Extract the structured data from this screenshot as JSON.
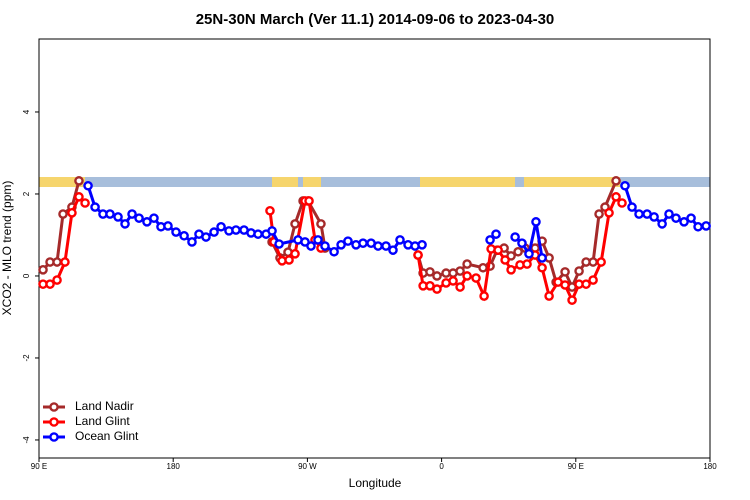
{
  "chart_data": {
    "type": "line",
    "title": "25N-30N March (Ver 11.1)   2014-09-06 to 2023-04-30",
    "x_label": "Longitude",
    "y_label": "XCO2 - MLO trend (ppm)",
    "xlim": [
      90,
      540
    ],
    "xticks": [
      {
        "value": 90,
        "label": "90 E"
      },
      180,
      {
        "value": 270,
        "label": "90 W"
      },
      {
        "value": 360,
        "label": "0"
      },
      {
        "value": 450,
        "label": "90 E"
      },
      {
        "value": 540,
        "label": "180"
      }
    ],
    "ylim": [
      -4.44,
      5.78
    ],
    "yticks": [
      -4,
      -2,
      0,
      2,
      4
    ],
    "legend": "lower left",
    "series": [
      {
        "name": "Land Nadir",
        "color": "#a52a2a",
        "x": [
          92.7,
          97.4,
          102.1,
          106.1,
          112.1,
          116.8,
          200,
          246.3,
          251.6,
          257.0,
          261.7,
          267.1,
          270.4,
          279.1,
          281.8,
          320,
          344.2,
          347.6,
          352.2,
          356.9,
          363.0,
          367.7,
          372.4,
          377.1,
          387.8,
          392.5,
          397.2,
          401.9,
          406.6,
          411.3,
          416.0,
          422.7,
          427.4,
          432.1,
          436.8,
          442.8,
          447.5,
          452.2,
          456.9,
          461.6,
          465.6,
          469.6,
          477.0
        ],
        "values": [
          0.15,
          0.34,
          0.34,
          1.51,
          1.68,
          2.32,
          null,
          0.83,
          0.44,
          0.58,
          1.27,
          1.83,
          1.83,
          1.27,
          0.68,
          null,
          0.51,
          0.07,
          0.1,
          0,
          0.07,
          0.07,
          0.12,
          0.29,
          0.2,
          0.24,
          0.63,
          0.68,
          0.49,
          0.59,
          0.68,
          0.68,
          0.85,
          0.44,
          -0.15,
          0.1,
          -0.27,
          0.12,
          0.34,
          0.34,
          1.51,
          1.68,
          2.32
        ]
      },
      {
        "name": "Land Glint",
        "color": "#ff0000",
        "x": [
          92.7,
          97.4,
          102.1,
          107.4,
          112.1,
          116.8,
          120.9,
          200,
          244.9,
          247.6,
          253.0,
          257.7,
          261.7,
          268.4,
          271.1,
          275.1,
          279.1,
          320,
          344.2,
          347.6,
          352.2,
          356.9,
          363.0,
          367.7,
          372.4,
          377.1,
          383.1,
          388.5,
          393.2,
          397.9,
          402.6,
          406.6,
          412.6,
          417.3,
          422.7,
          427.4,
          432.1,
          438.1,
          442.8,
          447.5,
          452.2,
          456.9,
          461.6,
          467.0,
          472.3,
          477.0,
          481.0
        ],
        "values": [
          -0.2,
          -0.2,
          -0.1,
          0.34,
          1.54,
          1.93,
          1.78,
          null,
          1.59,
          0.83,
          0.37,
          0.39,
          0.54,
          1.83,
          1.83,
          0.88,
          0.68,
          null,
          0.51,
          -0.24,
          -0.24,
          -0.32,
          -0.17,
          -0.12,
          -0.27,
          0,
          -0.05,
          -0.49,
          0.66,
          0.63,
          0.39,
          0.15,
          0.27,
          0.29,
          0.51,
          0.2,
          -0.49,
          -0.15,
          -0.22,
          -0.59,
          -0.2,
          -0.2,
          -0.1,
          0.34,
          1.54,
          1.93,
          1.78
        ]
      },
      {
        "name": "Ocean Glint",
        "color": "#0000ff",
        "x": [
          122.9,
          127.6,
          132.9,
          137.6,
          143.0,
          147.7,
          152.4,
          157.1,
          162.4,
          167.1,
          171.8,
          176.5,
          181.9,
          187.3,
          192.6,
          197.3,
          202.0,
          207.4,
          212.1,
          217.4,
          222.1,
          227.5,
          232.2,
          236.9,
          242.3,
          246.3,
          251.0,
          263.7,
          268.4,
          272.4,
          277.1,
          281.8,
          287.9,
          292.6,
          297.2,
          302.6,
          307.3,
          312.7,
          317.4,
          322.7,
          327.4,
          332.1,
          337.5,
          342.2,
          346.9,
          370,
          392.5,
          396.5,
          400,
          409.3,
          413.9,
          418.6,
          423.3,
          427.4,
          450,
          483.0,
          487.7,
          492.4,
          497.8,
          502.5,
          507.9,
          512.5,
          517.2,
          522.6,
          527.3,
          532.0,
          537.4
        ],
        "values": [
          2.2,
          1.68,
          1.51,
          1.51,
          1.44,
          1.27,
          1.51,
          1.41,
          1.32,
          1.41,
          1.2,
          1.22,
          1.07,
          0.98,
          0.83,
          1.02,
          0.95,
          1.07,
          1.2,
          1.1,
          1.12,
          1.12,
          1.05,
          1.02,
          1.02,
          1.1,
          0.78,
          0.88,
          0.83,
          0.73,
          0.88,
          0.73,
          0.59,
          0.76,
          0.85,
          0.76,
          0.8,
          0.8,
          0.73,
          0.73,
          0.63,
          0.88,
          0.76,
          0.73,
          0.76,
          null,
          0.88,
          1.02,
          null,
          0.95,
          0.8,
          0.54,
          1.32,
          0.44,
          null,
          2.2,
          1.68,
          1.51,
          1.51,
          1.44,
          1.27,
          1.51,
          1.41,
          1.32,
          1.41,
          1.2,
          1.22
        ]
      }
    ]
  }
}
